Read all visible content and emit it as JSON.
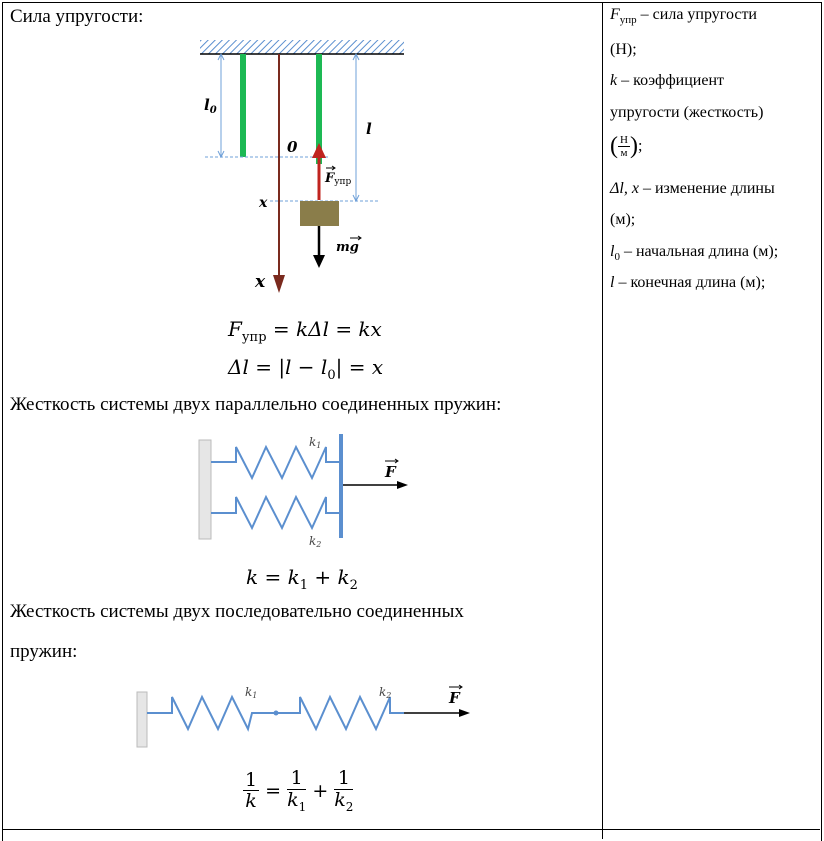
{
  "main": {
    "heading_elastic": "Сила упругости:",
    "heading_parallel": "Жесткость системы двух параллельно соединенных пружин:",
    "heading_series_line1": "Жесткость системы двух последовательно соединенных",
    "heading_series_line2": "пружин:"
  },
  "diagram1": {
    "label_l0": "l",
    "label_l0_sub": "0",
    "label_l": "l",
    "label_zero": "0",
    "label_x_axis": "x",
    "label_x_level": "x",
    "label_F": "F",
    "label_F_sub": "упр",
    "label_mg": "mg"
  },
  "diagram2": {
    "label_k1": "k",
    "label_k1_sub": "1",
    "label_k2": "k",
    "label_k2_sub": "2",
    "label_F": "F"
  },
  "diagram3": {
    "label_k1": "k",
    "label_k1_sub": "1",
    "label_k2": "k",
    "label_k2_sub": "2",
    "label_F": "F"
  },
  "formulas": {
    "f1_F": "F",
    "f1_sub": "упр",
    "f1_rest": " = kΔl = kx",
    "f2": "Δl = |l − l",
    "f2_sub": "0",
    "f2_end": "| = x",
    "f3": "k = k",
    "f3_sub1": "1",
    "f3_plus": " + k",
    "f3_sub2": "2",
    "f4_one": "1",
    "f4_k": "k",
    "f4_eq": "=",
    "f4_k1": "k",
    "f4_k1_sub": "1",
    "f4_plus": "+",
    "f4_k2": "k",
    "f4_k2_sub": "2"
  },
  "side": {
    "line1_F": "F",
    "line1_sub": "упр",
    "line1_rest": " – сила упругости",
    "line2": "(Н);",
    "line3_k": "k",
    "line3_rest": " – коэффициент",
    "line4": "упругости (жесткость)",
    "line5_num": "Н",
    "line5_den": "м",
    "line5_end": ";",
    "line6_dl": "Δl, x",
    "line6_rest": " – изменение длины",
    "line7": "(м);",
    "line8_l": "l",
    "line8_sub": "0",
    "line8_rest": " – начальная длина (м);",
    "line9_l": "l",
    "line9_rest": " – конечная длина (м);"
  },
  "colors": {
    "spring_green": "#1db954",
    "axis_brown": "#7a2a1e",
    "force_red": "#c0241f",
    "mass_olive": "#8a7d4a",
    "spring_blue": "#5b8fcf",
    "dim_blue": "#6fa0d8"
  }
}
